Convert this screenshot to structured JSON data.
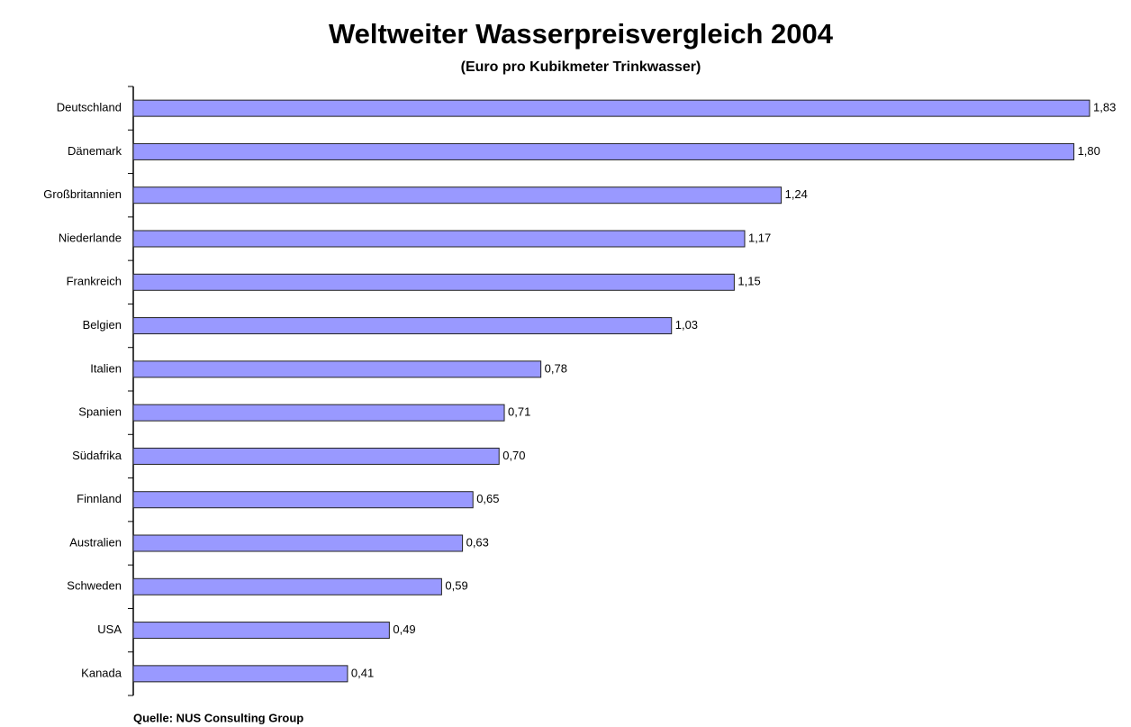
{
  "chart_data": {
    "type": "bar",
    "orientation": "horizontal",
    "title": "Weltweiter Wasserpreisvergleich 2004",
    "subtitle": "(Euro pro Kubikmeter Trinkwasser)",
    "source": "Quelle: NUS Consulting Group",
    "categories": [
      "Deutschland",
      "Dänemark",
      "Großbritannien",
      "Niederlande",
      "Frankreich",
      "Belgien",
      "Italien",
      "Spanien",
      "Südafrika",
      "Finnland",
      "Australien",
      "Schweden",
      "USA",
      "Kanada"
    ],
    "values": [
      1.83,
      1.8,
      1.24,
      1.17,
      1.15,
      1.03,
      0.78,
      0.71,
      0.7,
      0.65,
      0.63,
      0.59,
      0.49,
      0.41
    ],
    "value_labels": [
      "1,83",
      "1,80",
      "1,24",
      "1,17",
      "1,15",
      "1,03",
      "0,78",
      "0,71",
      "0,70",
      "0,65",
      "0,63",
      "0,59",
      "0,49",
      "0,41"
    ],
    "color": "#9999ff"
  }
}
